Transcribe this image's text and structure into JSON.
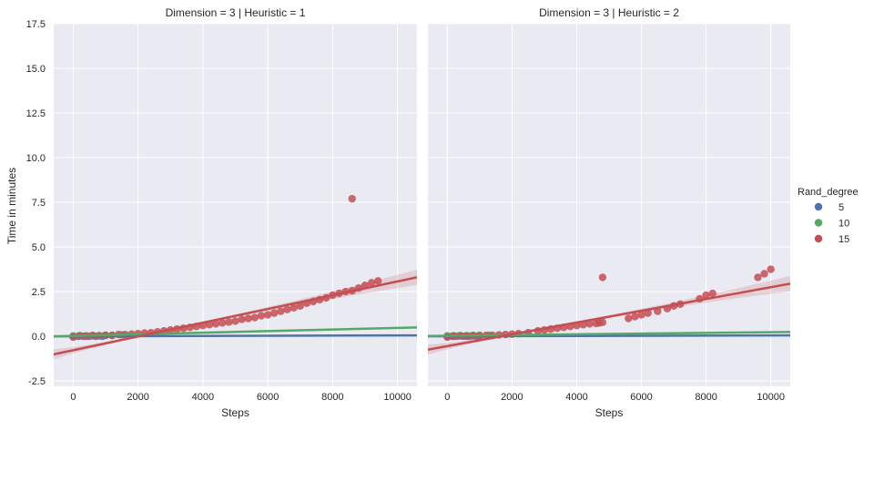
{
  "chart_data": {
    "type": "scatter",
    "style": "seaborn-darkgrid",
    "panel_background": "#EAEAF2",
    "ylabel": "Time in minutes",
    "xlim": [
      -600,
      10600
    ],
    "ylim": [
      -2.8,
      17.5
    ],
    "xticks": [
      0,
      2000,
      4000,
      6000,
      8000,
      10000
    ],
    "yticks": [
      -2.5,
      0.0,
      2.5,
      5.0,
      7.5,
      10.0,
      12.5,
      15.0,
      17.5
    ],
    "legend": {
      "title": "Rand_degree",
      "position": "right",
      "entries": [
        {
          "label": "5",
          "color": "#4C72B0"
        },
        {
          "label": "10",
          "color": "#55A868"
        },
        {
          "label": "15",
          "color": "#C44E52"
        }
      ]
    },
    "panels": [
      {
        "title": "Dimension = 3 | Heuristic = 1",
        "xlabel": "Steps",
        "series": [
          {
            "name": "5",
            "color": "#4C72B0",
            "points": [
              [
                0,
                0.0
              ],
              [
                150,
                0.0
              ],
              [
                300,
                0.0
              ],
              [
                500,
                0.0
              ],
              [
                700,
                0.0
              ],
              [
                900,
                0.0
              ]
            ],
            "fit": {
              "slope": 5e-06,
              "intercept": 0.0
            }
          },
          {
            "name": "10",
            "color": "#55A868",
            "points": [
              [
                0,
                0.02
              ],
              [
                200,
                0.04
              ],
              [
                400,
                0.03
              ],
              [
                600,
                0.05
              ],
              [
                800,
                0.04
              ],
              [
                1000,
                0.06
              ],
              [
                1200,
                0.05
              ],
              [
                1500,
                0.08
              ]
            ],
            "fit": {
              "slope": 4.5e-05,
              "intercept": 0.02
            }
          },
          {
            "name": "15",
            "color": "#C44E52",
            "points": [
              [
                0,
                -0.05
              ],
              [
                200,
                0.02
              ],
              [
                400,
                0.0
              ],
              [
                600,
                0.03
              ],
              [
                800,
                0.02
              ],
              [
                1000,
                0.05
              ],
              [
                1200,
                0.05
              ],
              [
                1400,
                0.1
              ],
              [
                1600,
                0.1
              ],
              [
                1800,
                0.12
              ],
              [
                2000,
                0.15
              ],
              [
                2200,
                0.18
              ],
              [
                2400,
                0.2
              ],
              [
                2600,
                0.25
              ],
              [
                2800,
                0.3
              ],
              [
                3000,
                0.35
              ],
              [
                3200,
                0.4
              ],
              [
                3400,
                0.45
              ],
              [
                3600,
                0.5
              ],
              [
                3800,
                0.55
              ],
              [
                4000,
                0.6
              ],
              [
                4200,
                0.65
              ],
              [
                4400,
                0.7
              ],
              [
                4600,
                0.75
              ],
              [
                4800,
                0.8
              ],
              [
                5000,
                0.85
              ],
              [
                5200,
                0.95
              ],
              [
                5400,
                1.0
              ],
              [
                5600,
                1.05
              ],
              [
                5800,
                1.15
              ],
              [
                6000,
                1.2
              ],
              [
                6200,
                1.3
              ],
              [
                6400,
                1.4
              ],
              [
                6600,
                1.5
              ],
              [
                6800,
                1.6
              ],
              [
                7000,
                1.7
              ],
              [
                7200,
                1.85
              ],
              [
                7400,
                1.95
              ],
              [
                7600,
                2.05
              ],
              [
                7800,
                2.15
              ],
              [
                8000,
                2.3
              ],
              [
                8200,
                2.4
              ],
              [
                8400,
                2.5
              ],
              [
                8600,
                2.55
              ],
              [
                8800,
                2.7
              ],
              [
                9000,
                2.85
              ],
              [
                9200,
                3.0
              ],
              [
                9400,
                3.1
              ],
              [
                8600,
                7.7
              ]
            ],
            "fit": {
              "slope": 0.000385,
              "intercept": -0.78
            }
          }
        ]
      },
      {
        "title": "Dimension = 3 | Heuristic = 2",
        "xlabel": "Steps",
        "series": [
          {
            "name": "5",
            "color": "#4C72B0",
            "points": [
              [
                0,
                0.0
              ],
              [
                150,
                0.0
              ],
              [
                300,
                0.0
              ],
              [
                500,
                0.0
              ],
              [
                700,
                0.0
              ],
              [
                900,
                0.0
              ]
            ],
            "fit": {
              "slope": 5e-06,
              "intercept": 0.0
            }
          },
          {
            "name": "10",
            "color": "#55A868",
            "points": [
              [
                0,
                0.02
              ],
              [
                200,
                0.03
              ],
              [
                400,
                0.04
              ],
              [
                600,
                0.04
              ],
              [
                800,
                0.05
              ],
              [
                1000,
                0.06
              ],
              [
                1300,
                0.06
              ]
            ],
            "fit": {
              "slope": 2e-05,
              "intercept": 0.03
            }
          },
          {
            "name": "15",
            "color": "#C44E52",
            "points": [
              [
                0,
                -0.05
              ],
              [
                200,
                0.0
              ],
              [
                400,
                0.02
              ],
              [
                600,
                0.0
              ],
              [
                800,
                0.03
              ],
              [
                1000,
                0.02
              ],
              [
                1200,
                0.05
              ],
              [
                1400,
                0.05
              ],
              [
                1600,
                0.08
              ],
              [
                1800,
                0.1
              ],
              [
                2000,
                0.12
              ],
              [
                2200,
                0.15
              ],
              [
                2500,
                0.2
              ],
              [
                2800,
                0.3
              ],
              [
                3000,
                0.35
              ],
              [
                3200,
                0.4
              ],
              [
                3400,
                0.45
              ],
              [
                3600,
                0.5
              ],
              [
                3800,
                0.55
              ],
              [
                4000,
                0.6
              ],
              [
                4200,
                0.65
              ],
              [
                4400,
                0.7
              ],
              [
                4600,
                0.72
              ],
              [
                4700,
                0.75
              ],
              [
                4800,
                0.78
              ],
              [
                5600,
                1.0
              ],
              [
                5800,
                1.1
              ],
              [
                6000,
                1.2
              ],
              [
                6200,
                1.3
              ],
              [
                6500,
                1.4
              ],
              [
                6800,
                1.55
              ],
              [
                7000,
                1.7
              ],
              [
                7200,
                1.8
              ],
              [
                7800,
                2.1
              ],
              [
                8000,
                2.3
              ],
              [
                8200,
                2.4
              ],
              [
                4800,
                3.3
              ],
              [
                9600,
                3.3
              ],
              [
                9800,
                3.5
              ],
              [
                10000,
                3.75
              ]
            ],
            "fit": {
              "slope": 0.00033,
              "intercept": -0.55
            }
          }
        ]
      }
    ]
  }
}
